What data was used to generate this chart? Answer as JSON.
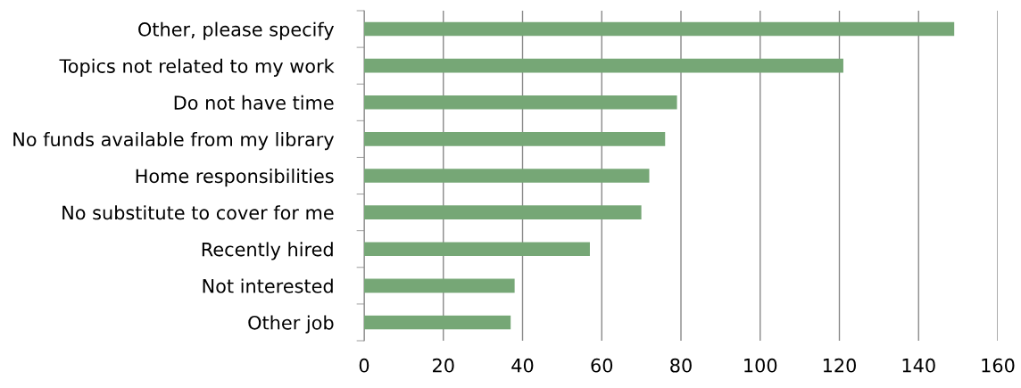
{
  "chart_data": {
    "type": "bar",
    "orientation": "horizontal",
    "categories": [
      "Other, please specify",
      "Topics not related to my work",
      "Do not have time",
      "No funds available from my library",
      "Home responsibilities",
      "No substitute to cover for me",
      "Recently hired",
      "Not interested",
      "Other job"
    ],
    "values": [
      149,
      121,
      79,
      76,
      72,
      70,
      57,
      38,
      37
    ],
    "color": "#76a776",
    "xlim": [
      0,
      160
    ],
    "xticks": [
      0,
      20,
      40,
      60,
      80,
      100,
      120,
      140,
      160
    ],
    "grid": "x"
  }
}
